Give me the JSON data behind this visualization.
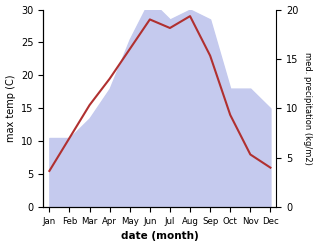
{
  "months": [
    "Jan",
    "Feb",
    "Mar",
    "Apr",
    "May",
    "Jun",
    "Jul",
    "Aug",
    "Sep",
    "Oct",
    "Nov",
    "Dec"
  ],
  "x": [
    0,
    1,
    2,
    3,
    4,
    5,
    6,
    7,
    8,
    9,
    10,
    11
  ],
  "temp": [
    5.5,
    10.5,
    15.5,
    19.5,
    24.0,
    28.5,
    27.2,
    29.0,
    23.0,
    14.0,
    8.0,
    6.0
  ],
  "precip": [
    7,
    7,
    9,
    12,
    17,
    21,
    19,
    20,
    19,
    12,
    12,
    10
  ],
  "temp_color": "#b03030",
  "precip_fill_color": "#c5caee",
  "ylabel_left": "max temp (C)",
  "ylabel_right": "med. precipitation (kg/m2)",
  "xlabel": "date (month)",
  "ylim_left": [
    0,
    30
  ],
  "ylim_right": [
    0,
    20
  ],
  "yticks_left": [
    0,
    5,
    10,
    15,
    20,
    25,
    30
  ],
  "yticks_right": [
    0,
    5,
    10,
    15,
    20
  ],
  "bg_color": "#f0f0f0"
}
